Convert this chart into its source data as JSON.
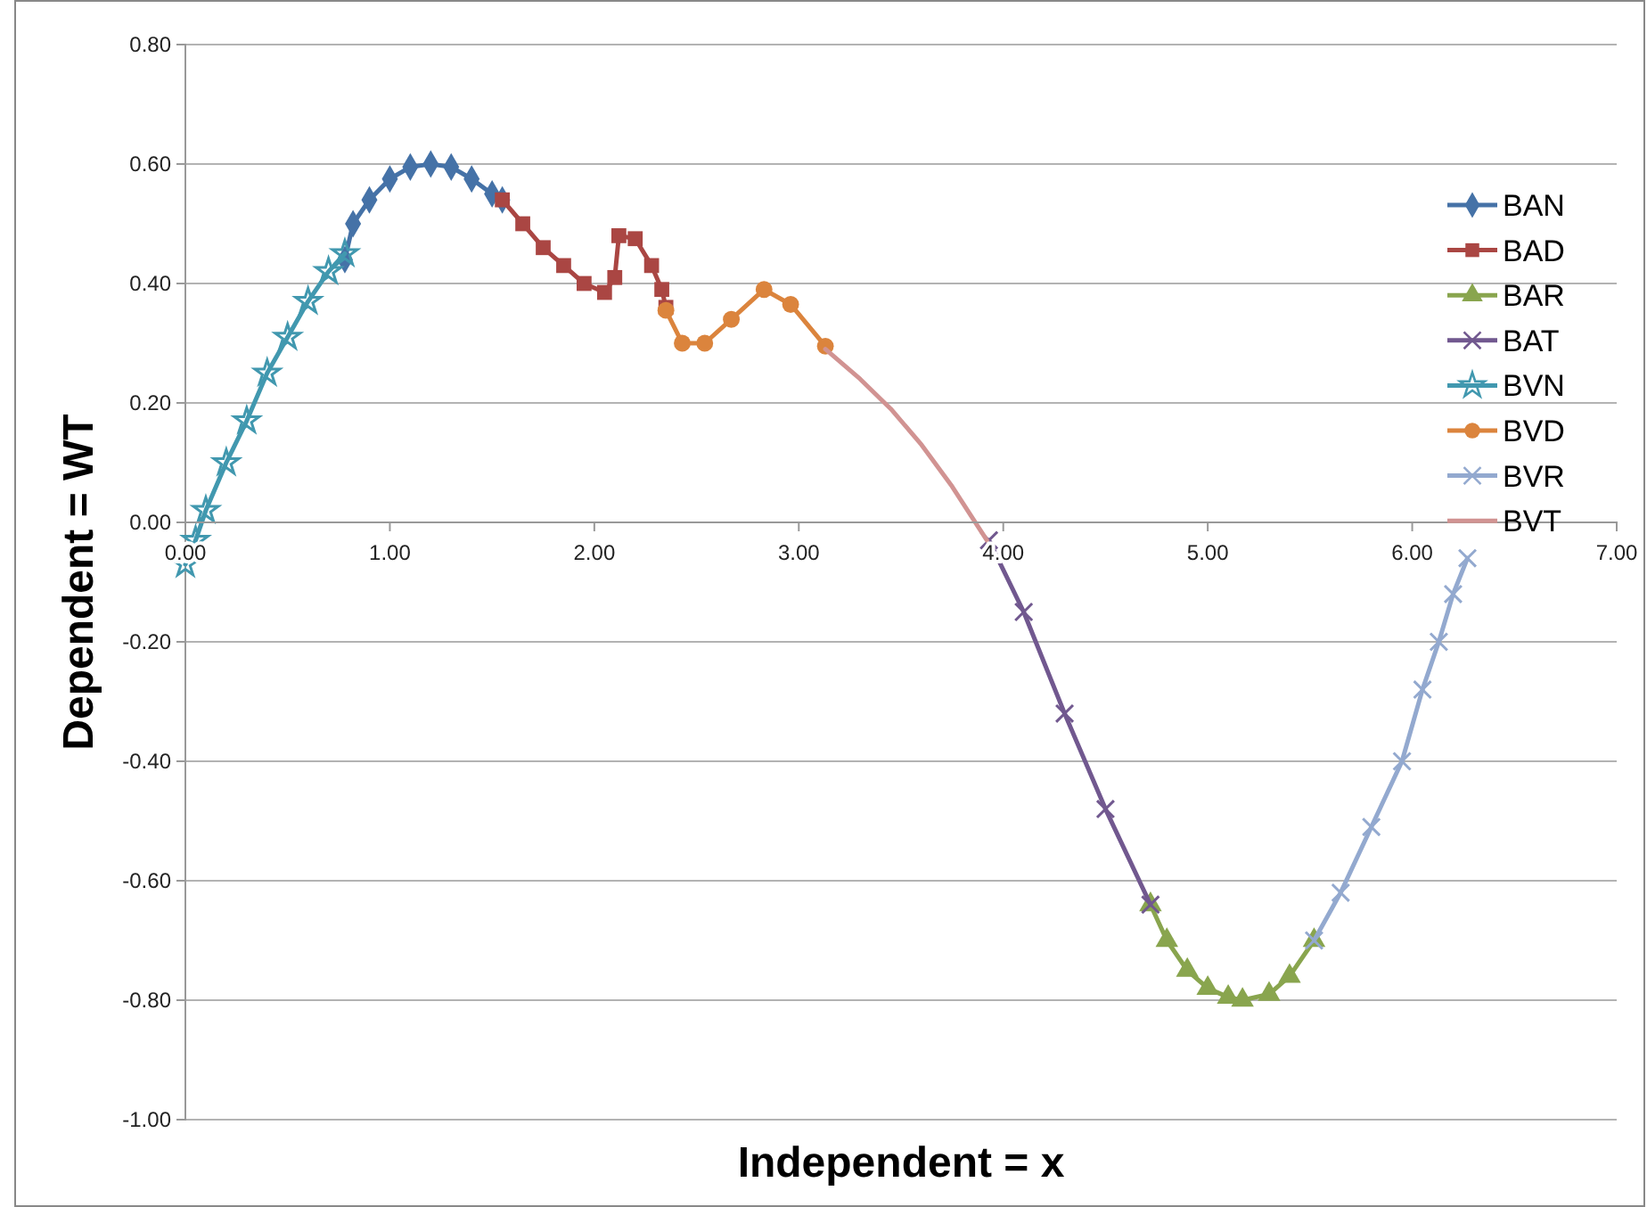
{
  "chart_data": {
    "type": "line",
    "xlabel": "Independent = x",
    "ylabel": "Dependent = WT",
    "xlim": [
      0,
      7
    ],
    "xticks": [
      {
        "value": 0,
        "label": "0.00"
      },
      {
        "value": 1,
        "label": "1.00"
      },
      {
        "value": 2,
        "label": "2.00"
      },
      {
        "value": 3,
        "label": "3.00"
      },
      {
        "value": 4,
        "label": "4.00"
      },
      {
        "value": 5,
        "label": "5.00"
      },
      {
        "value": 6,
        "label": "6.00"
      },
      {
        "value": 7,
        "label": "7.00"
      }
    ],
    "ylim": [
      -1,
      0.8
    ],
    "yticks": [
      {
        "value": -1,
        "label": "-1.00"
      },
      {
        "value": -0.8,
        "label": "-0.80"
      },
      {
        "value": -0.6,
        "label": "-0.60"
      },
      {
        "value": -0.4,
        "label": "-0.40"
      },
      {
        "value": -0.2,
        "label": "-0.20"
      },
      {
        "value": 0,
        "label": "0.00"
      },
      {
        "value": 0.2,
        "label": "0.20"
      },
      {
        "value": 0.4,
        "label": "0.40"
      },
      {
        "value": 0.6,
        "label": "0.60"
      },
      {
        "value": 0.8,
        "label": "0.80"
      }
    ],
    "grid": "y",
    "legend": "right",
    "series": [
      {
        "name": "BAN",
        "color": "#4572a7",
        "marker": "diamond",
        "x": [
          0.78,
          0.82,
          0.9,
          1.0,
          1.1,
          1.2,
          1.3,
          1.4,
          1.5,
          1.55
        ],
        "values": [
          0.44,
          0.5,
          0.54,
          0.575,
          0.595,
          0.6,
          0.595,
          0.575,
          0.55,
          0.54
        ]
      },
      {
        "name": "BAD",
        "color": "#aa4643",
        "marker": "square",
        "x": [
          1.55,
          1.65,
          1.75,
          1.85,
          1.95,
          2.05,
          2.1,
          2.12,
          2.2,
          2.28,
          2.33,
          2.35
        ],
        "values": [
          0.54,
          0.5,
          0.46,
          0.43,
          0.4,
          0.385,
          0.41,
          0.48,
          0.475,
          0.43,
          0.39,
          0.36
        ]
      },
      {
        "name": "BAR",
        "color": "#89a54e",
        "marker": "triangle",
        "x": [
          4.72,
          4.8,
          4.9,
          5.0,
          5.1,
          5.17,
          5.3,
          5.4,
          5.52
        ],
        "values": [
          -0.64,
          -0.7,
          -0.75,
          -0.78,
          -0.795,
          -0.8,
          -0.79,
          -0.76,
          -0.7
        ]
      },
      {
        "name": "BAT",
        "color": "#71588f",
        "marker": "cross",
        "x": [
          3.93,
          4.1,
          4.3,
          4.5,
          4.72
        ],
        "values": [
          -0.03,
          -0.15,
          -0.32,
          -0.48,
          -0.64
        ]
      },
      {
        "name": "BVN",
        "color": "#4198af",
        "marker": "star",
        "x": [
          0,
          0.05,
          0.1,
          0.2,
          0.3,
          0.4,
          0.5,
          0.6,
          0.7,
          0.78
        ],
        "values": [
          -0.07,
          -0.03,
          0.02,
          0.1,
          0.17,
          0.25,
          0.31,
          0.37,
          0.42,
          0.45
        ]
      },
      {
        "name": "BVD",
        "color": "#db843d",
        "marker": "circle",
        "x": [
          2.35,
          2.43,
          2.54,
          2.67,
          2.83,
          2.96,
          3.13
        ],
        "values": [
          0.355,
          0.3,
          0.3,
          0.34,
          0.39,
          0.365,
          0.295
        ]
      },
      {
        "name": "BVR",
        "color": "#93a9cf",
        "marker": "cross",
        "x": [
          5.52,
          5.65,
          5.8,
          5.95,
          6.05,
          6.13,
          6.2,
          6.27
        ],
        "values": [
          -0.7,
          -0.62,
          -0.51,
          -0.4,
          -0.28,
          -0.2,
          -0.12,
          -0.06
        ]
      },
      {
        "name": "BVT",
        "color": "#d19392",
        "marker": "none",
        "x": [
          3.13,
          3.3,
          3.45,
          3.6,
          3.75,
          3.92
        ],
        "values": [
          0.29,
          0.24,
          0.19,
          0.13,
          0.06,
          -0.03
        ]
      }
    ]
  }
}
